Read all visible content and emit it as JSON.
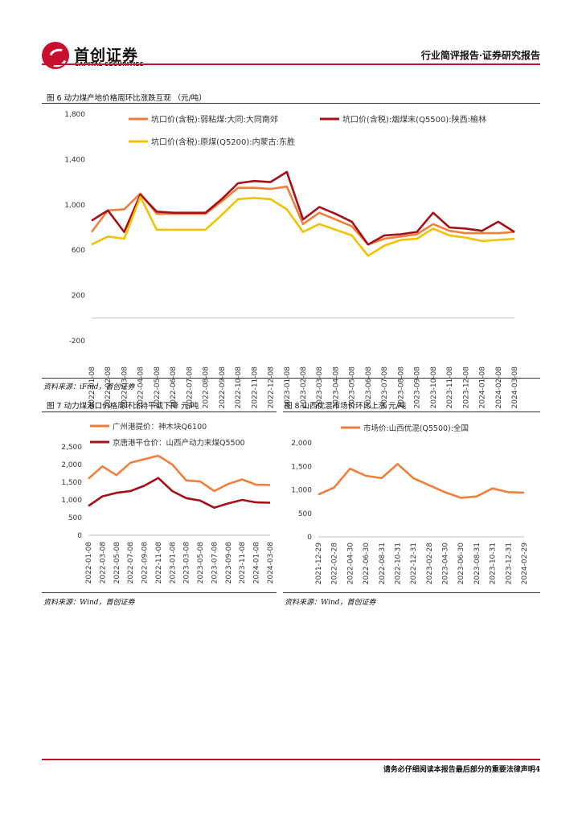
{
  "header": {
    "company_cn": "首创证券",
    "company_en": "CAPITAL SECURITIES",
    "report_type": "行业简评报告·证券研究报告"
  },
  "fig6": {
    "title": "图 6 动力煤产地价格周环比涨跌互现 （元/吨）",
    "source": "资料来源：iFind，首创证券"
  },
  "fig7": {
    "title": "图 7 动力煤港口价格周环比持平或下降   元/吨",
    "source": "资料来源：Wind，首创证券"
  },
  "fig8": {
    "title": "图 8 山西优混市场价环比上涨   元/吨",
    "source": "资料来源：Wind，首创证券"
  },
  "footer": {
    "text": "请务必仔细阅读本报告最后部分的重要法律声明4"
  },
  "chart_data": [
    {
      "type": "line",
      "id": "fig6",
      "title": "图 6 动力煤产地价格周环比涨跌互现 （元/吨）",
      "ylim": [
        -200,
        1800
      ],
      "yticks": [
        "1,800",
        "1,400",
        "1,000",
        "600",
        "200",
        "-200"
      ],
      "ytick_values": [
        1800,
        1400,
        1000,
        600,
        200,
        -200
      ],
      "x": [
        "2022-01-08",
        "2022-02-08",
        "2022-03-08",
        "2022-04-08",
        "2022-05-08",
        "2022-06-08",
        "2022-07-08",
        "2022-08-08",
        "2022-09-08",
        "2022-10-08",
        "2022-11-08",
        "2022-12-08",
        "2023-01-08",
        "2023-02-08",
        "2023-03-08",
        "2023-04-08",
        "2023-05-08",
        "2023-06-08",
        "2023-07-08",
        "2023-08-08",
        "2023-09-08",
        "2023-10-08",
        "2023-11-08",
        "2023-12-08",
        "2024-01-08",
        "2024-02-08",
        "2024-03-08"
      ],
      "series": [
        {
          "name": "坑口价(含税):弱粘煤:大同:大同南郊",
          "color": "#f07f3c",
          "values": [
            760,
            950,
            960,
            1100,
            920,
            920,
            920,
            920,
            1030,
            1150,
            1150,
            1140,
            1160,
            830,
            930,
            870,
            810,
            650,
            700,
            720,
            740,
            830,
            770,
            750,
            750,
            750,
            760
          ]
        },
        {
          "name": "坑口价(含税):烟煤末(Q5500):陕西:榆林",
          "color": "#a50f15",
          "values": [
            860,
            950,
            760,
            1090,
            940,
            930,
            930,
            930,
            1050,
            1190,
            1210,
            1200,
            1290,
            870,
            980,
            920,
            850,
            650,
            730,
            740,
            760,
            930,
            800,
            790,
            770,
            850,
            760
          ]
        },
        {
          "name": "坑口价(含税):原煤(Q5200):内蒙古:东胜",
          "color": "#f2c200",
          "values": [
            650,
            720,
            700,
            1070,
            780,
            780,
            780,
            780,
            910,
            1050,
            1060,
            1050,
            960,
            760,
            830,
            780,
            730,
            550,
            640,
            690,
            700,
            790,
            730,
            710,
            680,
            690,
            700
          ]
        }
      ]
    },
    {
      "type": "line",
      "id": "fig7",
      "ylim": [
        0,
        2500
      ],
      "yticks": [
        "2,500",
        "2,000",
        "1,500",
        "1,000",
        "500",
        "0"
      ],
      "ytick_values": [
        2500,
        2000,
        1500,
        1000,
        500,
        0
      ],
      "x": [
        "2022-01-08",
        "2022-03-08",
        "2022-05-08",
        "2022-07-08",
        "2022-09-08",
        "2022-11-08",
        "2023-01-08",
        "2023-03-08",
        "2023-05-08",
        "2023-07-08",
        "2023-09-08",
        "2023-11-08",
        "2024-01-08",
        "2024-03-08"
      ],
      "series": [
        {
          "name": "广州港提价：神木块Q6100",
          "color": "#f07f3c",
          "values": [
            1600,
            1950,
            1700,
            2050,
            2150,
            2250,
            2000,
            1550,
            1520,
            1250,
            1450,
            1580,
            1430,
            1420
          ]
        },
        {
          "name": "京唐港平仓价：山西产动力末煤Q5500",
          "color": "#a50f15",
          "values": [
            830,
            1100,
            1200,
            1250,
            1400,
            1620,
            1250,
            1050,
            980,
            780,
            900,
            1000,
            930,
            920
          ]
        }
      ]
    },
    {
      "type": "line",
      "id": "fig8",
      "ylim": [
        0,
        2000
      ],
      "yticks": [
        "2,000",
        "1,500",
        "1,000",
        "500",
        "0"
      ],
      "ytick_values": [
        2000,
        1500,
        1000,
        500,
        0
      ],
      "x": [
        "2021-12-29",
        "2022-02-28",
        "2022-04-30",
        "2022-06-30",
        "2022-08-31",
        "2022-10-31",
        "2022-12-31",
        "2023-02-28",
        "2023-04-30",
        "2023-06-30",
        "2023-08-31",
        "2023-10-31",
        "2023-12-31",
        "2024-02-29"
      ],
      "series": [
        {
          "name": "市场价:山西优混(Q5500):全国",
          "color": "#f07f3c",
          "values": [
            900,
            1050,
            1450,
            1300,
            1250,
            1550,
            1250,
            1100,
            950,
            830,
            860,
            1030,
            950,
            940
          ]
        }
      ]
    }
  ]
}
